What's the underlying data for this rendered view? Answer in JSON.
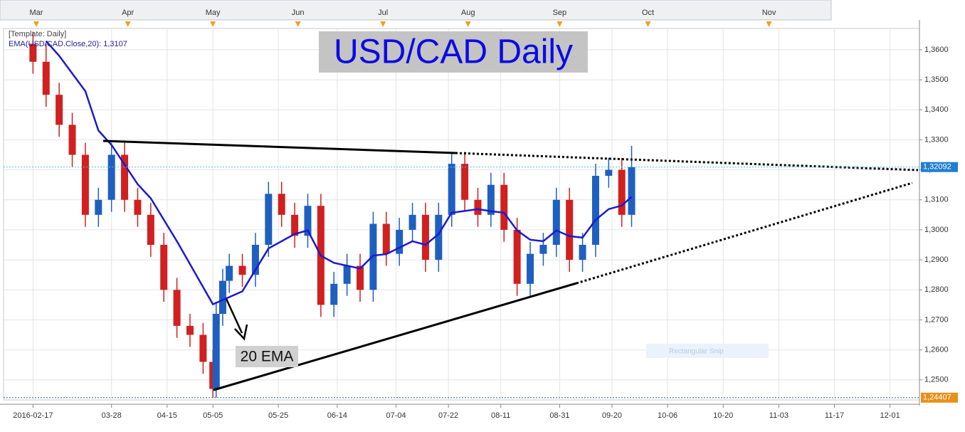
{
  "chart_data": {
    "type": "candlestick",
    "title": "USD/CAD Daily",
    "legend_lines": [
      "[Template: Daily]",
      "EMA(USD/CAD.Close,20): 1,3107"
    ],
    "annotation": "20 EMA",
    "snip_label": "Rectangular Snip",
    "up_color": "#1f5fbf",
    "down_color": "#d02020",
    "ema_color": "#1a1ad0",
    "x": [
      0,
      4,
      8,
      12,
      16,
      20,
      24,
      28,
      32,
      36,
      40,
      44,
      48,
      52,
      55,
      56,
      58,
      60,
      64,
      68,
      72,
      76,
      80,
      84,
      88,
      92,
      96,
      100,
      104,
      108,
      112,
      116,
      120,
      124,
      128,
      132,
      136,
      140,
      144,
      148,
      152,
      156,
      160,
      164,
      168,
      172,
      176,
      180,
      183
    ],
    "open": [
      1.362,
      1.356,
      1.345,
      1.335,
      1.325,
      1.305,
      1.31,
      1.325,
      1.31,
      1.305,
      1.295,
      1.28,
      1.268,
      1.265,
      1.256,
      1.247,
      1.272,
      1.283,
      1.288,
      1.285,
      1.295,
      1.312,
      1.305,
      1.298,
      1.308,
      1.275,
      1.282,
      1.288,
      1.28,
      1.302,
      1.292,
      1.3,
      1.305,
      1.29,
      1.305,
      1.322,
      1.31,
      1.305,
      1.315,
      1.3,
      1.282,
      1.292,
      1.295,
      1.31,
      1.29,
      1.295,
      1.318,
      1.32,
      1.305
    ],
    "high": [
      1.366,
      1.362,
      1.349,
      1.339,
      1.329,
      1.314,
      1.329,
      1.329,
      1.314,
      1.309,
      1.299,
      1.284,
      1.272,
      1.269,
      1.26,
      1.276,
      1.287,
      1.292,
      1.292,
      1.299,
      1.316,
      1.316,
      1.309,
      1.312,
      1.312,
      1.286,
      1.292,
      1.292,
      1.306,
      1.306,
      1.304,
      1.309,
      1.309,
      1.309,
      1.326,
      1.326,
      1.314,
      1.319,
      1.319,
      1.304,
      1.296,
      1.299,
      1.314,
      1.314,
      1.299,
      1.322,
      1.324,
      1.324,
      1.328
    ],
    "low": [
      1.352,
      1.341,
      1.331,
      1.321,
      1.301,
      1.301,
      1.306,
      1.306,
      1.301,
      1.291,
      1.276,
      1.264,
      1.261,
      1.252,
      1.2441,
      1.2441,
      1.268,
      1.279,
      1.281,
      1.281,
      1.291,
      1.301,
      1.294,
      1.294,
      1.271,
      1.271,
      1.278,
      1.276,
      1.276,
      1.288,
      1.288,
      1.296,
      1.286,
      1.286,
      1.301,
      1.306,
      1.301,
      1.301,
      1.296,
      1.278,
      1.278,
      1.288,
      1.291,
      1.286,
      1.286,
      1.291,
      1.314,
      1.301,
      1.301
    ],
    "close": [
      1.356,
      1.345,
      1.335,
      1.325,
      1.305,
      1.31,
      1.325,
      1.31,
      1.305,
      1.295,
      1.28,
      1.268,
      1.265,
      1.256,
      1.247,
      1.272,
      1.283,
      1.288,
      1.285,
      1.295,
      1.312,
      1.305,
      1.298,
      1.308,
      1.275,
      1.282,
      1.288,
      1.28,
      1.302,
      1.292,
      1.3,
      1.305,
      1.29,
      1.305,
      1.322,
      1.31,
      1.305,
      1.315,
      1.3,
      1.282,
      1.292,
      1.295,
      1.31,
      1.29,
      1.295,
      1.318,
      1.32,
      1.305,
      1.3209
    ],
    "ema_x": [
      4,
      8,
      16,
      20,
      24,
      32,
      36,
      44,
      55,
      64,
      72,
      80,
      84,
      88,
      92,
      100,
      104,
      108,
      116,
      120,
      124,
      128,
      136,
      140,
      144,
      148,
      152,
      156,
      160,
      164,
      168,
      172,
      176,
      180,
      183
    ],
    "ema": [
      1.3629,
      1.358,
      1.3462,
      1.3331,
      1.3283,
      1.3152,
      1.3105,
      1.2962,
      1.2752,
      1.2795,
      1.2938,
      1.2986,
      1.2998,
      1.2914,
      1.289,
      1.2871,
      1.2914,
      1.2919,
      1.2962,
      1.295,
      1.2986,
      1.3057,
      1.3069,
      1.3062,
      1.3057,
      1.2998,
      1.2967,
      1.2962,
      1.2998,
      1.2979,
      1.2974,
      1.3033,
      1.3069,
      1.3081,
      1.311
    ],
    "current_price": {
      "value": 1.32092,
      "label": "1,32092"
    },
    "low_price": {
      "value": 1.24407,
      "label": "1,24407"
    },
    "xlim": [
      -9,
      271
    ],
    "ylim": [
      1.2433,
      1.3671
    ],
    "yticks": [
      {
        "value": 1.25,
        "label": "1,2500"
      },
      {
        "value": 1.26,
        "label": "1,2600"
      },
      {
        "value": 1.27,
        "label": "1,2700"
      },
      {
        "value": 1.28,
        "label": "1,2800"
      },
      {
        "value": 1.29,
        "label": "1,2900"
      },
      {
        "value": 1.3,
        "label": "1,3000"
      },
      {
        "value": 1.31,
        "label": "1,3100"
      },
      {
        "value": 1.32,
        "label": "1,3200"
      },
      {
        "value": 1.33,
        "label": "1,3300"
      },
      {
        "value": 1.34,
        "label": "1,3400"
      },
      {
        "value": 1.35,
        "label": "1,3500"
      },
      {
        "value": 1.36,
        "label": "1,3600"
      }
    ],
    "xticks": [
      {
        "value": 0,
        "label": "2016-02-17"
      },
      {
        "value": 24,
        "label": "03-28"
      },
      {
        "value": 41,
        "label": "04-15"
      },
      {
        "value": 55,
        "label": "05-05"
      },
      {
        "value": 75,
        "label": "05-25"
      },
      {
        "value": 93,
        "label": "06-14"
      },
      {
        "value": 111,
        "label": "07-04"
      },
      {
        "value": 127,
        "label": "07-22"
      },
      {
        "value": 143,
        "label": "08-11"
      },
      {
        "value": 161,
        "label": "08-31"
      },
      {
        "value": 177,
        "label": "09-20"
      },
      {
        "value": 194,
        "label": "10-06"
      },
      {
        "value": 211,
        "label": "10-20"
      },
      {
        "value": 228,
        "label": "11-03"
      },
      {
        "value": 245,
        "label": "11-17"
      },
      {
        "value": 262,
        "label": "12-01"
      }
    ],
    "month_ticks": [
      {
        "value": 1,
        "label": "Mar"
      },
      {
        "value": 29,
        "label": "Apr"
      },
      {
        "value": 55,
        "label": "May"
      },
      {
        "value": 81,
        "label": "Jun"
      },
      {
        "value": 107,
        "label": "Jul"
      },
      {
        "value": 133,
        "label": "Aug"
      },
      {
        "value": 161,
        "label": "Sep"
      },
      {
        "value": 188,
        "label": "Oct"
      },
      {
        "value": 225,
        "label": "Nov"
      }
    ],
    "grid": true
  }
}
